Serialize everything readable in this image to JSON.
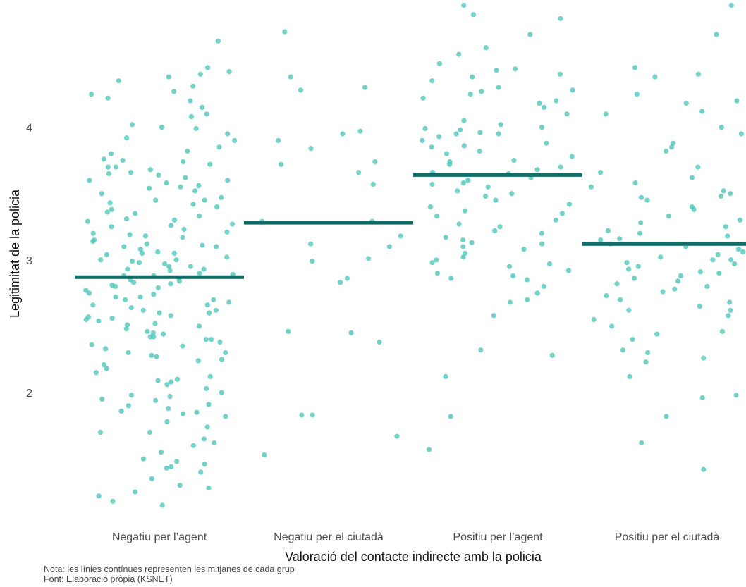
{
  "chart_data": {
    "type": "scatter",
    "subtype": "jitter-strip-with-means",
    "title": "",
    "xlabel": "Valoració del contacte indirecte amb la policia",
    "ylabel": "Legitimitat de la policia",
    "categories": [
      "Negatiu per l’agent",
      "Negatiu per el ciutadà",
      "Positiu per l’agent",
      "Positiu per el ciutadà"
    ],
    "ylim": [
      1.0,
      4.9
    ],
    "yticks": [
      2,
      3,
      4
    ],
    "grid": false,
    "legend": "none",
    "point_color": "#3cc1b2",
    "mean_line_color": "#0f6f68",
    "means": [
      2.87,
      3.28,
      3.64,
      3.12
    ],
    "points": [
      [
        4.65,
        4.45,
        4.42,
        4.4,
        4.38,
        4.31,
        4.27,
        4.25,
        4.2,
        4.15,
        4.08,
        4.02,
        3.99,
        3.95,
        3.9,
        3.85,
        3.8,
        3.76,
        3.74,
        3.72,
        3.7,
        3.68,
        3.66,
        3.64,
        3.62,
        3.6,
        3.58,
        3.56,
        3.54,
        3.52,
        3.5,
        3.47,
        3.45,
        3.43,
        3.4,
        3.38,
        3.35,
        3.33,
        3.31,
        3.29,
        3.27,
        3.25,
        3.23,
        3.21,
        3.19,
        3.17,
        3.15,
        3.14,
        3.12,
        3.11,
        3.1,
        3.08,
        3.06,
        3.04,
        3.02,
        3.0,
        2.99,
        2.97,
        2.95,
        2.93,
        2.92,
        2.9,
        2.89,
        2.88,
        2.86,
        2.85,
        2.84,
        2.82,
        2.81,
        2.79,
        2.77,
        2.75,
        2.74,
        2.72,
        2.7,
        2.68,
        2.66,
        2.64,
        2.62,
        2.6,
        2.58,
        2.56,
        2.54,
        2.52,
        2.5,
        2.48,
        2.46,
        2.44,
        2.42,
        2.4,
        2.38,
        2.36,
        2.33,
        2.3,
        2.27,
        2.24,
        2.21,
        2.18,
        2.15,
        2.12,
        2.09,
        2.06,
        2.03,
        2.0,
        1.97,
        1.94,
        1.91,
        1.88,
        1.86,
        1.84,
        1.82,
        1.78,
        1.74,
        1.7,
        1.65,
        1.6,
        1.55,
        1.5,
        1.46,
        1.43,
        1.4,
        1.35,
        1.3,
        1.25,
        1.22,
        1.18,
        1.15,
        3.65,
        3.55,
        3.42,
        3.2,
        3.05,
        2.98,
        2.8,
        2.7,
        2.62,
        2.55,
        2.45,
        2.35,
        2.25,
        2.1,
        1.95,
        1.9,
        1.85,
        2.95,
        3.3,
        3.75,
        4.1,
        4.35,
        2.08,
        1.62,
        1.48,
        3.0,
        2.88,
        3.36,
        2.51,
        2.28,
        3.92,
        4.0,
        1.28,
        3.18,
        2.72,
        2.4,
        3.6,
        3.45,
        2.66,
        1.98,
        3.82,
        3.1,
        2.3,
        2.93,
        1.44,
        3.7,
        2.57,
        4.22,
        3.26,
        2.83,
        2.42,
        1.7,
        3.05,
        2.6
      ],
      [
        4.72,
        4.38,
        4.3,
        4.28,
        3.97,
        3.95,
        3.9,
        3.84,
        3.74,
        3.72,
        3.66,
        3.57,
        3.29,
        3.29,
        3.18,
        3.12,
        3.1,
        3.01,
        2.99,
        2.86,
        2.83,
        2.46,
        2.45,
        2.38,
        1.83,
        1.83,
        1.67,
        1.53
      ],
      [
        4.92,
        4.85,
        4.82,
        4.7,
        4.6,
        4.55,
        4.48,
        4.44,
        4.43,
        4.4,
        4.38,
        4.35,
        4.3,
        4.28,
        4.27,
        4.25,
        4.22,
        4.2,
        4.18,
        4.15,
        4.1,
        4.05,
        4.0,
        3.99,
        3.98,
        3.96,
        3.95,
        3.93,
        3.9,
        3.88,
        3.86,
        3.85,
        3.82,
        3.8,
        3.78,
        3.75,
        3.74,
        3.72,
        3.7,
        3.68,
        3.66,
        3.62,
        3.6,
        3.57,
        3.55,
        3.52,
        3.5,
        3.45,
        3.42,
        3.4,
        3.37,
        3.35,
        3.3,
        3.27,
        3.25,
        3.22,
        3.2,
        3.17,
        3.15,
        3.13,
        3.1,
        3.08,
        3.05,
        3.02,
        3.0,
        2.98,
        2.95,
        2.92,
        2.9,
        2.88,
        2.85,
        2.8,
        2.75,
        2.7,
        2.68,
        2.58,
        2.32,
        2.28,
        2.12,
        1.82,
        1.57,
        3.95,
        4.02,
        3.65,
        3.33,
        3.12,
        2.97,
        2.86,
        3.48,
        3.58
      ],
      [
        4.92,
        4.7,
        4.45,
        4.4,
        4.38,
        4.25,
        4.2,
        4.18,
        4.12,
        4.1,
        4.0,
        3.95,
        3.88,
        3.85,
        3.82,
        3.7,
        3.66,
        3.62,
        3.55,
        3.52,
        3.5,
        3.48,
        3.45,
        3.4,
        3.38,
        3.3,
        3.28,
        3.25,
        3.22,
        3.2,
        3.18,
        3.16,
        3.15,
        3.12,
        3.1,
        3.08,
        3.06,
        3.04,
        3.02,
        3.0,
        2.98,
        2.97,
        2.95,
        2.93,
        2.9,
        2.88,
        2.86,
        2.84,
        2.82,
        2.8,
        2.78,
        2.76,
        2.73,
        2.7,
        2.68,
        2.65,
        2.62,
        2.58,
        2.55,
        2.5,
        2.46,
        2.44,
        2.4,
        2.32,
        2.3,
        2.26,
        2.23,
        2.12,
        1.98,
        1.96,
        1.82,
        1.62,
        1.42,
        3.33,
        3.58,
        3.0,
        2.91,
        2.62,
        3.47
      ]
    ]
  },
  "footnote": {
    "line1": "Nota: les línies contínues representen les mitjanes de cada grup",
    "line2": "Font: Elaboració pròpia (KSNET)"
  }
}
